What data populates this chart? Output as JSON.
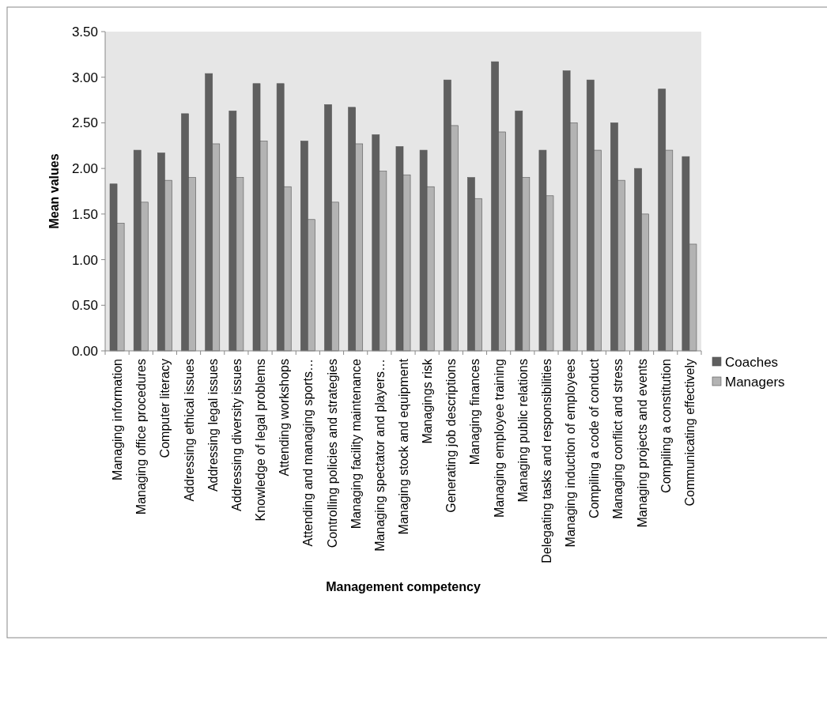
{
  "chart_data": {
    "type": "bar",
    "xlabel": "Management competency",
    "ylabel": "Mean values",
    "categories": [
      "Managing information",
      "Managing office procedures",
      "Computer literacy",
      "Addressing ethical issues",
      "Addressing legal issues",
      "Addressing diversity issues",
      "Knowledge of legal problems",
      "Attending workshops",
      "Attending and managing sports…",
      "Controlling policies and strategies",
      "Managing facility maintenance",
      "Managing spectator and players…",
      "Managing stock and equipment",
      "Managings risk",
      "Generating job descriptions",
      "Managing finances",
      "Managing employee training",
      "Managing public relations",
      "Delegating tasks and responsibilities",
      "Managing induction of employees",
      "Compiling a code of conduct",
      "Managing conflict and stress",
      "Managing projects and events",
      "Compiling a constitution",
      "Communicating effectively"
    ],
    "series": [
      {
        "name": "Coaches",
        "color": "#5f5f5f",
        "values": [
          1.83,
          2.2,
          2.17,
          2.6,
          3.04,
          2.63,
          2.93,
          2.93,
          2.3,
          2.7,
          2.67,
          2.37,
          2.24,
          2.2,
          2.97,
          1.9,
          3.17,
          2.63,
          2.2,
          3.07,
          2.97,
          2.5,
          2.0,
          2.87,
          2.13
        ]
      },
      {
        "name": "Managers",
        "color": "#b3b3b3",
        "values": [
          1.4,
          1.63,
          1.87,
          1.9,
          2.27,
          1.9,
          2.3,
          1.8,
          1.44,
          1.63,
          2.27,
          1.97,
          1.93,
          1.8,
          2.47,
          1.67,
          2.4,
          1.9,
          1.7,
          2.5,
          2.2,
          1.87,
          1.5,
          2.2,
          1.17
        ]
      }
    ],
    "ylim": [
      0,
      3.5
    ],
    "yticks": [
      {
        "value": 0,
        "label": "0.00"
      },
      {
        "value": 0.5,
        "label": "0.50"
      },
      {
        "value": 1,
        "label": "1.00"
      },
      {
        "value": 1.5,
        "label": "1.50"
      },
      {
        "value": 2,
        "label": "2.00"
      },
      {
        "value": 2.5,
        "label": "2.50"
      },
      {
        "value": 3,
        "label": "3.00"
      },
      {
        "value": 3.5,
        "label": "3.50"
      }
    ],
    "grid": false,
    "legend": "right"
  }
}
